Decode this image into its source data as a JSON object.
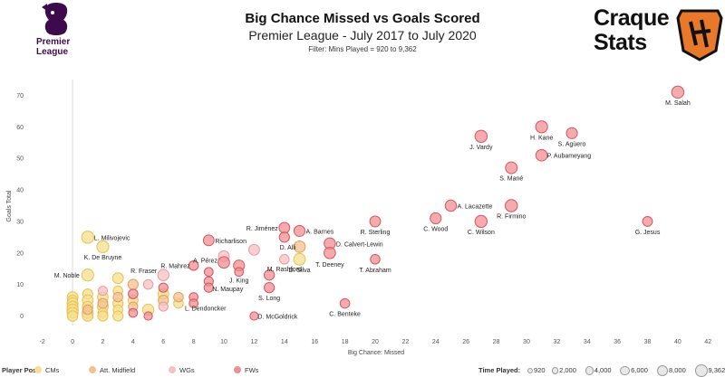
{
  "header": {
    "title": "Big Chance Missed vs Goals Scored",
    "subtitle": "Premier League - July 2017 to July 2020",
    "filter_note": "Filter: Mins Played = 920 to 9,362",
    "left_logo_text": "Premier\nLeague",
    "right_logo_text": "Craque\nStats"
  },
  "colors": {
    "CMs": "#f6df8f",
    "Att. Midfield": "#f2c18f",
    "WGs": "#f5c0c3",
    "FWs": "#ee8f94",
    "CMs_stroke": "#e6c24f",
    "Att. Midfield_stroke": "#e39e5c",
    "WGs_stroke": "#e89aa0",
    "FWs_stroke": "#d9545c",
    "pl_purple": "#3d0a4b",
    "cs_orange": "#e8782a"
  },
  "chart_data": {
    "type": "scatter",
    "title": "Big Chance Missed vs Goals Scored",
    "subtitle": "Premier League - July 2017 to July 2020",
    "xlabel": "Big Chance: Missed",
    "ylabel": "Goals Total",
    "xlim": [
      -3,
      43
    ],
    "ylim": [
      -3,
      75
    ],
    "xticks": [
      -2,
      0,
      2,
      4,
      6,
      8,
      10,
      12,
      14,
      16,
      18,
      20,
      22,
      24,
      26,
      28,
      30,
      32,
      34,
      36,
      38,
      40,
      42
    ],
    "yticks": [
      0,
      10,
      20,
      30,
      40,
      50,
      60,
      70
    ],
    "grid": false,
    "legend": {
      "position": "bottom",
      "title": "Player Pos:",
      "entries": [
        "CMs",
        "Att. Midfield",
        "WGs",
        "FWs"
      ],
      "size_title": "Time Played:",
      "size_entries": [
        "920",
        "2,000",
        "4,000",
        "6,000",
        "8,000",
        "9,362"
      ]
    },
    "points": [
      {
        "x": 40,
        "y": 71,
        "pos": "FWs",
        "mins": 8000,
        "label": "M. Salah"
      },
      {
        "x": 31,
        "y": 60,
        "pos": "FWs",
        "mins": 7500,
        "label": "H. Kane"
      },
      {
        "x": 33,
        "y": 58,
        "pos": "FWs",
        "mins": 5500,
        "label": "S. Agüero"
      },
      {
        "x": 27,
        "y": 57,
        "pos": "FWs",
        "mins": 8000,
        "label": "J. Vardy"
      },
      {
        "x": 31,
        "y": 51,
        "pos": "FWs",
        "mins": 6500,
        "label": "P. Aubameyang"
      },
      {
        "x": 29,
        "y": 47,
        "pos": "FWs",
        "mins": 7000,
        "label": "S. Mané"
      },
      {
        "x": 25,
        "y": 35,
        "pos": "FWs",
        "mins": 6000,
        "label": "A. Lacazette"
      },
      {
        "x": 29,
        "y": 35,
        "pos": "FWs",
        "mins": 8200,
        "label": "R. Firmino"
      },
      {
        "x": 24,
        "y": 31,
        "pos": "FWs",
        "mins": 5500,
        "label": "C. Wood"
      },
      {
        "x": 27,
        "y": 30,
        "pos": "FWs",
        "mins": 7800,
        "label": "C. Wilson"
      },
      {
        "x": 20,
        "y": 30,
        "pos": "FWs",
        "mins": 5000,
        "label": "R. Sterling"
      },
      {
        "x": 38,
        "y": 30,
        "pos": "FWs",
        "mins": 3500,
        "label": "G. Jesus"
      },
      {
        "x": 14,
        "y": 28,
        "pos": "FWs",
        "mins": 5000,
        "label": "R. Jiménez"
      },
      {
        "x": 15,
        "y": 27,
        "pos": "FWs",
        "mins": 5500,
        "label": "A. Barnes"
      },
      {
        "x": 14,
        "y": 25,
        "pos": "FWs",
        "mins": 4000,
        "label": ""
      },
      {
        "x": 9,
        "y": 24,
        "pos": "FWs",
        "mins": 5000,
        "label": "Richarlison"
      },
      {
        "x": 17,
        "y": 23,
        "pos": "FWs",
        "mins": 6000,
        "label": "D. Calvert-Lewin"
      },
      {
        "x": 15,
        "y": 22,
        "pos": "Att. Midfield",
        "mins": 6500,
        "label": "D. Alli"
      },
      {
        "x": 12,
        "y": 21,
        "pos": "WGs",
        "mins": 5000,
        "label": ""
      },
      {
        "x": 10,
        "y": 19,
        "pos": "WGs",
        "mins": 5000,
        "label": ""
      },
      {
        "x": 17,
        "y": 20,
        "pos": "FWs",
        "mins": 6500,
        "label": "T. Deeney"
      },
      {
        "x": 10,
        "y": 17,
        "pos": "FWs",
        "mins": 6500,
        "label": "A. Pérez"
      },
      {
        "x": 15,
        "y": 18,
        "pos": "CMs",
        "mins": 7000,
        "label": "D. Silva"
      },
      {
        "x": 14,
        "y": 18,
        "pos": "WGs",
        "mins": 3000,
        "label": "M. Rashford"
      },
      {
        "x": 20,
        "y": 18,
        "pos": "FWs",
        "mins": 3000,
        "label": "T. Abraham"
      },
      {
        "x": 11,
        "y": 16,
        "pos": "FWs",
        "mins": 5500,
        "label": ""
      },
      {
        "x": 8,
        "y": 16,
        "pos": "FWs",
        "mins": 3000,
        "label": "R. Mahrez"
      },
      {
        "x": 9,
        "y": 14,
        "pos": "FWs",
        "mins": 2000,
        "label": ""
      },
      {
        "x": 11,
        "y": 14,
        "pos": "FWs",
        "mins": 2000,
        "label": "J. King"
      },
      {
        "x": 13,
        "y": 13,
        "pos": "FWs",
        "mins": 4000,
        "label": ""
      },
      {
        "x": 9,
        "y": 11,
        "pos": "FWs",
        "mins": 2500,
        "label": ""
      },
      {
        "x": 9,
        "y": 9,
        "pos": "FWs",
        "mins": 2500,
        "label": "N. Maupay"
      },
      {
        "x": 13,
        "y": 9,
        "pos": "FWs",
        "mins": 4000,
        "label": "S. Long"
      },
      {
        "x": 18,
        "y": 4,
        "pos": "FWs",
        "mins": 3000,
        "label": "C. Benteke"
      },
      {
        "x": 12,
        "y": 0,
        "pos": "FWs",
        "mins": 1500,
        "label": "D. McGoldrick"
      },
      {
        "x": 1,
        "y": 25,
        "pos": "CMs",
        "mins": 8000,
        "label": "L. Milivojevic"
      },
      {
        "x": 2,
        "y": 22,
        "pos": "CMs",
        "mins": 7500,
        "label": "K. De Bruyne"
      },
      {
        "x": 1,
        "y": 13,
        "pos": "CMs",
        "mins": 7500,
        "label": "M. Noble"
      },
      {
        "x": 3,
        "y": 12,
        "pos": "CMs",
        "mins": 5000,
        "label": ""
      },
      {
        "x": 6,
        "y": 13,
        "pos": "WGs",
        "mins": 6000,
        "label": "R. Fraser"
      },
      {
        "x": 5,
        "y": 10,
        "pos": "WGs",
        "mins": 3000,
        "label": ""
      },
      {
        "x": 4,
        "y": 10,
        "pos": "Att. Midfield",
        "mins": 4000,
        "label": ""
      },
      {
        "x": 6,
        "y": 9,
        "pos": "FWs",
        "mins": 2500,
        "label": ""
      },
      {
        "x": 7,
        "y": 6,
        "pos": "Att. Midfield",
        "mins": 3000,
        "label": ""
      },
      {
        "x": 7,
        "y": 4,
        "pos": "CMs",
        "mins": 3000,
        "label": "L. Dendoncker"
      },
      {
        "x": 8,
        "y": 6,
        "pos": "FWs",
        "mins": 2000,
        "label": ""
      },
      {
        "x": 8,
        "y": 4,
        "pos": "FWs",
        "mins": 2000,
        "label": ""
      },
      {
        "x": 5,
        "y": 2,
        "pos": "CMs",
        "mins": 6000,
        "label": ""
      },
      {
        "x": 5,
        "y": 0,
        "pos": "FWs",
        "mins": 1500,
        "label": ""
      },
      {
        "x": 6,
        "y": 7,
        "pos": "CMs",
        "mins": 5000,
        "label": ""
      },
      {
        "x": 6,
        "y": 5,
        "pos": "Att. Midfield",
        "mins": 4000,
        "label": ""
      },
      {
        "x": 6,
        "y": 3,
        "pos": "WGs",
        "mins": 2500,
        "label": ""
      },
      {
        "x": 4,
        "y": 7,
        "pos": "FWs",
        "mins": 3000,
        "label": ""
      },
      {
        "x": 4,
        "y": 5,
        "pos": "CMs",
        "mins": 3500,
        "label": ""
      },
      {
        "x": 4,
        "y": 3,
        "pos": "Att. Midfield",
        "mins": 2500,
        "label": ""
      },
      {
        "x": 4,
        "y": 1,
        "pos": "FWs",
        "mins": 2000,
        "label": ""
      },
      {
        "x": 3,
        "y": 8,
        "pos": "CMs",
        "mins": 3000,
        "label": ""
      },
      {
        "x": 3,
        "y": 6,
        "pos": "Att. Midfield",
        "mins": 3000,
        "label": ""
      },
      {
        "x": 3,
        "y": 4,
        "pos": "CMs",
        "mins": 4000,
        "label": ""
      },
      {
        "x": 3,
        "y": 2,
        "pos": "CMs",
        "mins": 3000,
        "label": ""
      },
      {
        "x": 3,
        "y": 0,
        "pos": "CMs",
        "mins": 4000,
        "label": ""
      },
      {
        "x": 2,
        "y": 8,
        "pos": "WGs",
        "mins": 2500,
        "label": ""
      },
      {
        "x": 2,
        "y": 6,
        "pos": "CMs",
        "mins": 4500,
        "label": ""
      },
      {
        "x": 2,
        "y": 4,
        "pos": "Att. Midfield",
        "mins": 3500,
        "label": ""
      },
      {
        "x": 2,
        "y": 3,
        "pos": "CMs",
        "mins": 5000,
        "label": ""
      },
      {
        "x": 2,
        "y": 1,
        "pos": "CMs",
        "mins": 3000,
        "label": ""
      },
      {
        "x": 2,
        "y": 0,
        "pos": "CMs",
        "mins": 4000,
        "label": ""
      },
      {
        "x": 1,
        "y": 7,
        "pos": "CMs",
        "mins": 3500,
        "label": ""
      },
      {
        "x": 1,
        "y": 5,
        "pos": "CMs",
        "mins": 5000,
        "label": ""
      },
      {
        "x": 1,
        "y": 3,
        "pos": "CMs",
        "mins": 4500,
        "label": ""
      },
      {
        "x": 1,
        "y": 2,
        "pos": "Att. Midfield",
        "mins": 3000,
        "label": ""
      },
      {
        "x": 1,
        "y": 1,
        "pos": "CMs",
        "mins": 5500,
        "label": ""
      },
      {
        "x": 1,
        "y": 0,
        "pos": "CMs",
        "mins": 4500,
        "label": ""
      },
      {
        "x": 0,
        "y": 6,
        "pos": "CMs",
        "mins": 5000,
        "label": ""
      },
      {
        "x": 0,
        "y": 5,
        "pos": "CMs",
        "mins": 4000,
        "label": ""
      },
      {
        "x": 0,
        "y": 4,
        "pos": "CMs",
        "mins": 5500,
        "label": ""
      },
      {
        "x": 0,
        "y": 3,
        "pos": "CMs",
        "mins": 5000,
        "label": ""
      },
      {
        "x": 0,
        "y": 2,
        "pos": "CMs",
        "mins": 6000,
        "label": ""
      },
      {
        "x": 0,
        "y": 1,
        "pos": "CMs",
        "mins": 5000,
        "label": ""
      },
      {
        "x": 0,
        "y": 0,
        "pos": "CMs",
        "mins": 4500,
        "label": ""
      }
    ]
  }
}
